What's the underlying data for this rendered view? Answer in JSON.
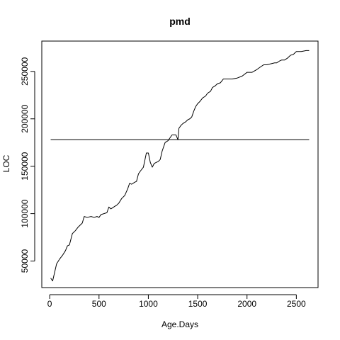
{
  "chart_data": {
    "type": "line",
    "title": "pmd",
    "xlabel": "Age.Days",
    "ylabel": "LOC",
    "xlim": [
      -80,
      2720
    ],
    "ylim": [
      22000,
      282000
    ],
    "x_ticks": [
      0,
      500,
      1000,
      1500,
      2000,
      2500
    ],
    "x_tick_labels": [
      "0",
      "500",
      "1000",
      "1500",
      "2000",
      "2500"
    ],
    "y_ticks": [
      50000,
      100000,
      150000,
      200000,
      250000
    ],
    "y_tick_labels": [
      "50000",
      "100000",
      "150000",
      "200000",
      "250000"
    ],
    "grid": false,
    "legend": "none",
    "colors": {
      "series": "#000000",
      "reference_line": "#444444",
      "background": "#ffffff",
      "frame": "#000000"
    },
    "series": [
      {
        "x": [
          10,
          30,
          70,
          100,
          130,
          160,
          180,
          200,
          230,
          260,
          290,
          330,
          350,
          380,
          420,
          450,
          480,
          500,
          520,
          550,
          580,
          600,
          620,
          650,
          680,
          700,
          730,
          760,
          790,
          810,
          830,
          860,
          880,
          900,
          920,
          950,
          980,
          1000,
          1020,
          1040,
          1060,
          1080,
          1100,
          1120,
          1140,
          1170,
          1200,
          1220,
          1240,
          1260,
          1280,
          1300,
          1310,
          1330,
          1350,
          1380,
          1400,
          1420,
          1440,
          1460,
          1480,
          1500,
          1520,
          1550,
          1580,
          1600,
          1630,
          1650,
          1680,
          1700,
          1730,
          1760,
          1790,
          1810,
          1850,
          1900,
          1950,
          2000,
          2030,
          2050,
          2100,
          2140,
          2170,
          2200,
          2240,
          2280,
          2300,
          2330,
          2350,
          2380,
          2410,
          2440,
          2470,
          2500,
          2550,
          2600,
          2630
        ],
        "values": [
          32000,
          29000,
          47000,
          52000,
          56000,
          61000,
          66000,
          67000,
          79000,
          82000,
          86000,
          90000,
          97000,
          96000,
          97000,
          96000,
          97000,
          96000,
          99000,
          100000,
          101000,
          107000,
          105000,
          107000,
          109000,
          111000,
          116000,
          119000,
          126000,
          132000,
          131000,
          133000,
          134000,
          142000,
          145000,
          149000,
          164000,
          164000,
          154000,
          149000,
          153000,
          154000,
          155000,
          157000,
          166000,
          175000,
          177000,
          180000,
          183000,
          183000,
          183000,
          178000,
          190000,
          193000,
          195000,
          197000,
          199000,
          200000,
          202000,
          208000,
          213000,
          216000,
          218000,
          222000,
          224000,
          227000,
          229000,
          233000,
          235000,
          237000,
          238000,
          242000,
          242000,
          242000,
          242000,
          243000,
          245000,
          249000,
          249000,
          249000,
          252000,
          255000,
          257000,
          257000,
          258000,
          259000,
          259000,
          261000,
          262000,
          262000,
          264000,
          267000,
          268000,
          271000,
          271000,
          272000,
          272000
        ]
      }
    ],
    "reference_line": {
      "y": 178000,
      "x_from": 10,
      "x_to": 2630
    }
  }
}
